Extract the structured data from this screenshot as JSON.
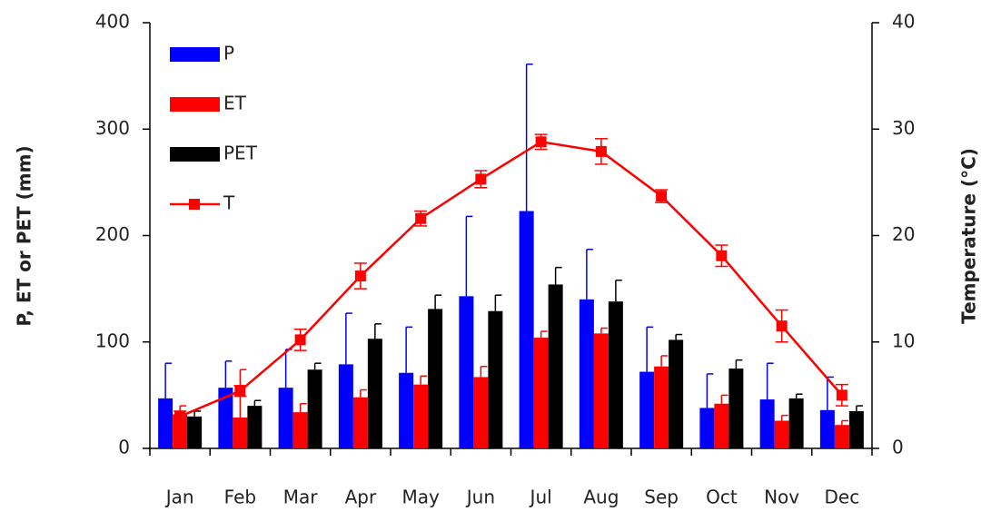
{
  "chart_data": {
    "type": "bar",
    "y_label": "P, ET or PET (mm)",
    "y2_label": "Temperature (°C)",
    "categories": [
      "Jan",
      "Feb",
      "Mar",
      "Apr",
      "May",
      "Jun",
      "Jul",
      "Aug",
      "Sep",
      "Oct",
      "Nov",
      "Dec"
    ],
    "ylim": [
      0,
      400
    ],
    "yticks": [
      0,
      100,
      200,
      300,
      400
    ],
    "y2lim": [
      0,
      40
    ],
    "y2ticks": [
      0,
      10,
      20,
      30,
      40
    ],
    "legend": "upper left",
    "series": [
      {
        "name": "P",
        "type": "bar",
        "color": "#0000ff",
        "values": [
          47,
          57,
          57,
          79,
          71,
          143,
          223,
          140,
          72,
          38,
          46,
          36
        ],
        "errors": [
          33,
          25,
          36,
          48,
          43,
          75,
          138,
          47,
          42,
          32,
          34,
          31
        ]
      },
      {
        "name": "ET",
        "type": "bar",
        "color": "#ff0000",
        "values": [
          32,
          29,
          34,
          48,
          60,
          67,
          104,
          108,
          77,
          42,
          26,
          22
        ],
        "errors": [
          8,
          45,
          8,
          7,
          8,
          10,
          6,
          5,
          10,
          8,
          5,
          4
        ]
      },
      {
        "name": "PET",
        "type": "bar",
        "color": "#000000",
        "values": [
          30,
          40,
          74,
          103,
          131,
          129,
          154,
          138,
          102,
          75,
          47,
          35
        ],
        "errors": [
          5,
          5,
          6,
          14,
          13,
          15,
          16,
          20,
          5,
          8,
          4,
          5
        ]
      },
      {
        "name": "T",
        "type": "line",
        "axis": "y2",
        "color": "#ff0000",
        "values": [
          3,
          5.4,
          10.2,
          16.2,
          21.6,
          25.3,
          28.8,
          27.9,
          23.7,
          18.1,
          11.5,
          5
        ],
        "errors": [
          0.5,
          0.5,
          1,
          1.2,
          0.7,
          0.8,
          0.7,
          1.2,
          0.6,
          1,
          1.5,
          1
        ]
      }
    ]
  }
}
